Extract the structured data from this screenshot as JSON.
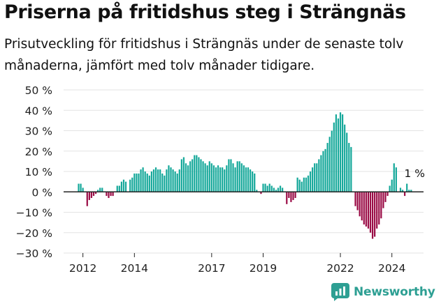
{
  "header": {
    "title": "Priserna på fritidshus steg i Strängnäs",
    "subtitle": "Prisutveckling för fritidshus i Strängnäs under de senaste tolv månaderna, jämfört med tolv månader tidigare."
  },
  "brand": {
    "name": "Newsworthy"
  },
  "colors": {
    "positive": "#15a89a",
    "negative": "#9a0b45",
    "accent": "#2d9f93"
  },
  "chart_data": {
    "type": "bar",
    "title": "",
    "xlabel": "",
    "ylabel": "",
    "ylim": [
      -30,
      50
    ],
    "yticks": [
      -30,
      -20,
      -10,
      0,
      10,
      20,
      30,
      40,
      50
    ],
    "ytick_labels": [
      "−30 %",
      "−20 %",
      "−10 %",
      "0 %",
      "10 %",
      "20 %",
      "30 %",
      "40 %",
      "50 %"
    ],
    "xtick_labels": [
      "2012",
      "2014",
      "2017",
      "2019",
      "2022",
      "2024"
    ],
    "xtick_positions": [
      "2012-01",
      "2014-01",
      "2017-01",
      "2019-01",
      "2022-01",
      "2024-01"
    ],
    "grid": true,
    "annotation": {
      "text": "1 %",
      "at": "2024-12"
    },
    "x_start": "2011-11",
    "x_step": "month",
    "values": [
      4,
      4,
      2,
      null,
      -7,
      -4,
      -3,
      -2,
      -1,
      1,
      2,
      2,
      null,
      -2,
      -3,
      -2,
      -2,
      null,
      3,
      3,
      5,
      6,
      5,
      null,
      6,
      7,
      9,
      9,
      9,
      11,
      12,
      10,
      9,
      8,
      10,
      11,
      12,
      11,
      11,
      9,
      8,
      11,
      13,
      12,
      11,
      10,
      9,
      11,
      16,
      17,
      14,
      13,
      15,
      16,
      18,
      18,
      17,
      16,
      15,
      14,
      13,
      15,
      14,
      13,
      12,
      13,
      12,
      12,
      11,
      13,
      16,
      16,
      14,
      12,
      15,
      15,
      14,
      13,
      12,
      12,
      11,
      10,
      9,
      1,
      null,
      -1,
      4,
      4,
      3,
      4,
      3,
      2,
      1,
      2,
      3,
      2,
      null,
      -6,
      -3,
      -5,
      -4,
      -3,
      7,
      6,
      5,
      7,
      7,
      8,
      10,
      12,
      14,
      14,
      16,
      18,
      20,
      21,
      24,
      27,
      30,
      34,
      38,
      36,
      39,
      38,
      33,
      29,
      24,
      22,
      null,
      -7,
      -9,
      -12,
      -14,
      -16,
      -17,
      -18,
      -20,
      -23,
      -22,
      -18,
      -16,
      -13,
      -8,
      -5,
      -2,
      3,
      6,
      14,
      12,
      null,
      2,
      1,
      -2,
      4,
      1,
      1
    ]
  }
}
